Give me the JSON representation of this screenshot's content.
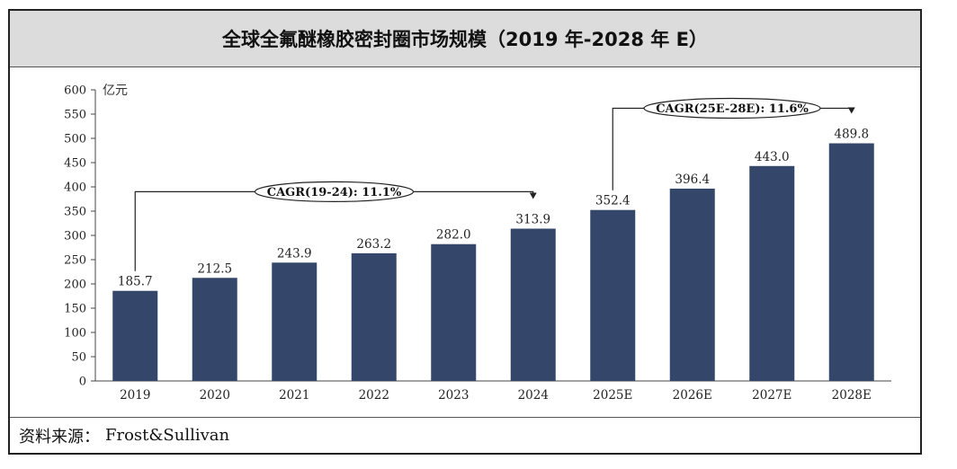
{
  "title": "全球全氟醚橡胶密封圈市场规模（2019 年-2028 年 E）",
  "source": {
    "label": "资料来源：",
    "value": "Frost&Sullivan"
  },
  "colors": {
    "bar": "#34476a",
    "title_bg": "#dcdcdc"
  },
  "chart_data": {
    "type": "bar",
    "unit_label": "亿元",
    "categories": [
      "2019",
      "2020",
      "2021",
      "2022",
      "2023",
      "2024",
      "2025E",
      "2026E",
      "2027E",
      "2028E"
    ],
    "values": [
      185.7,
      212.5,
      243.9,
      263.2,
      282.0,
      313.9,
      352.4,
      396.4,
      443.0,
      489.8
    ],
    "value_labels": [
      "185.7",
      "212.5",
      "243.9",
      "263.2",
      "282.0",
      "313.9",
      "352.4",
      "396.4",
      "443.0",
      "489.8"
    ],
    "ylim": [
      0,
      600
    ],
    "yticks": [
      "0",
      "50",
      "100",
      "150",
      "200",
      "250",
      "300",
      "350",
      "400",
      "450",
      "500",
      "550",
      "600"
    ],
    "grid": false,
    "annotations": [
      {
        "text": "CAGR(19-24): 11.1%",
        "from": "2019",
        "to": "2024"
      },
      {
        "text": "CAGR(25E-28E): 11.6%",
        "from": "2025E",
        "to": "2028E"
      }
    ]
  }
}
